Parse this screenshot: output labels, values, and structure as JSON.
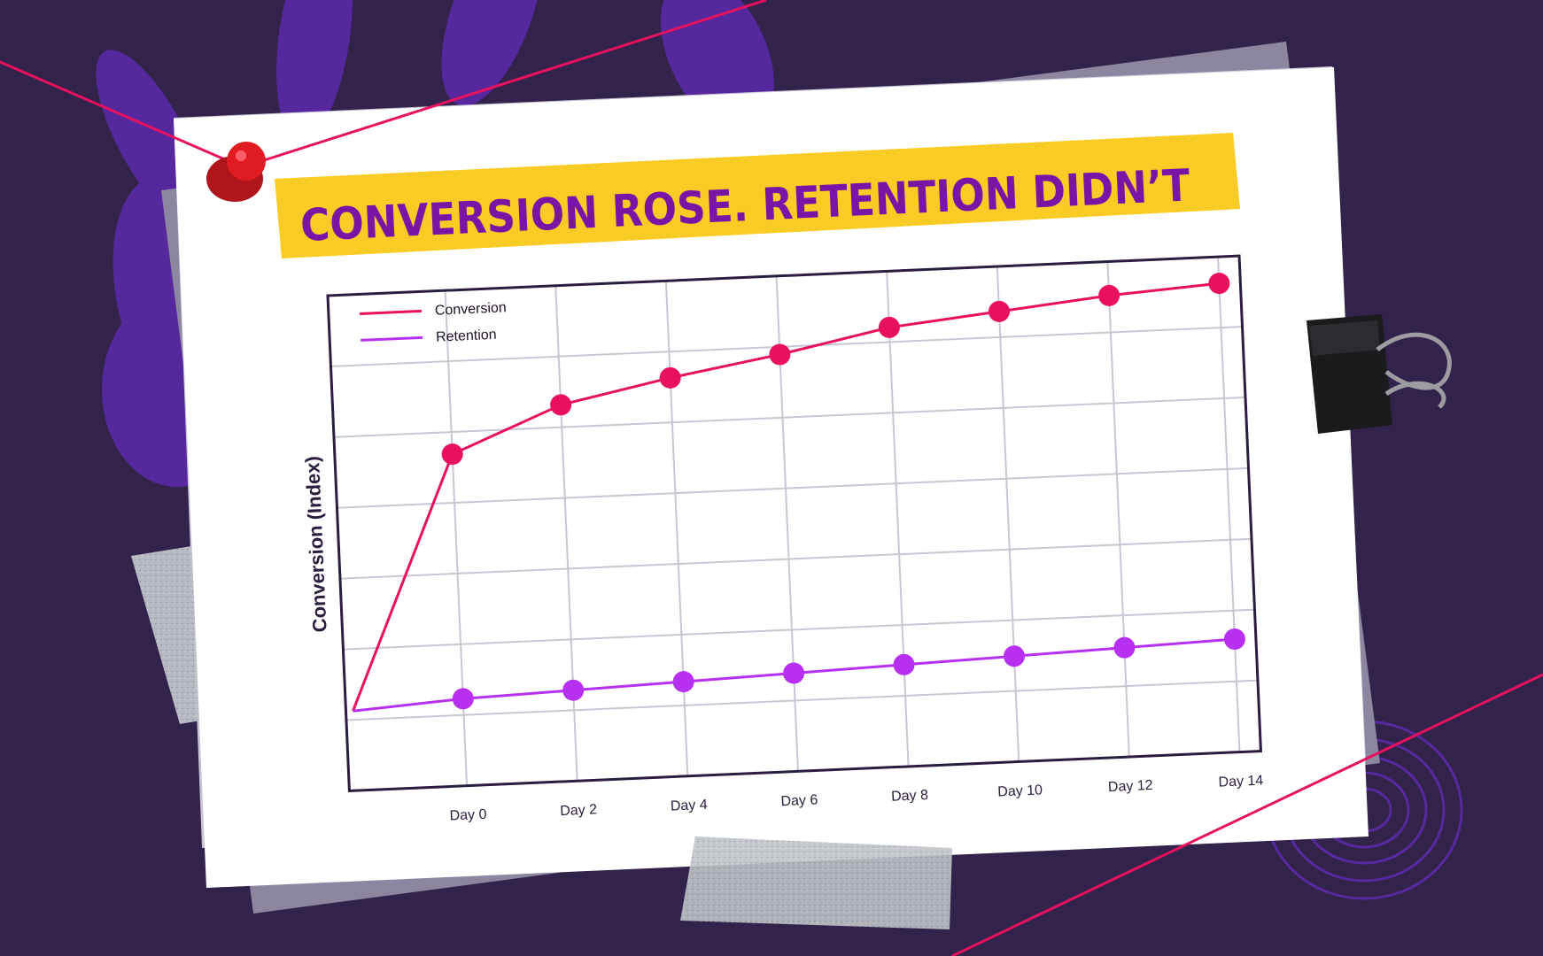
{
  "colors": {
    "background": "#32234a",
    "handprint": "#5a2aa8",
    "paper": "#ffffff",
    "tape_yellow": "#f8cc25",
    "title": "#7a14a6",
    "conversion": "#e8105f",
    "retention": "#b730f2",
    "string": "#e8105f",
    "pin": "#e11b22",
    "grid": "#c9c6d3",
    "axis": "#2b1d3d"
  },
  "icons": [
    "push-pin-icon",
    "binder-clip-icon",
    "handprint-icon",
    "fingerprint-icon"
  ],
  "chart_data": {
    "type": "line",
    "title": "CONVERSION ROSE. RETENTION DIDN’T",
    "xlabel": "",
    "ylabel": "Conversion (Index)",
    "x_tick_labels": [
      "Day 0",
      "Day 2",
      "Day 4",
      "Day 6",
      "Day 8",
      "Day 10",
      "Day 12",
      "Day 14"
    ],
    "x": [
      0,
      2,
      4,
      6,
      8,
      10,
      12,
      14
    ],
    "start_x": -2,
    "ylim": [
      0,
      100
    ],
    "grid": true,
    "legend_position": "top-left",
    "series": [
      {
        "name": "Conversion",
        "start_value": 0,
        "values": [
          68,
          80,
          86,
          91,
          97,
          100,
          103,
          105
        ]
      },
      {
        "name": "Retention",
        "start_value": 0,
        "values": [
          2,
          3,
          4,
          5,
          6,
          7,
          8,
          9
        ]
      }
    ]
  }
}
